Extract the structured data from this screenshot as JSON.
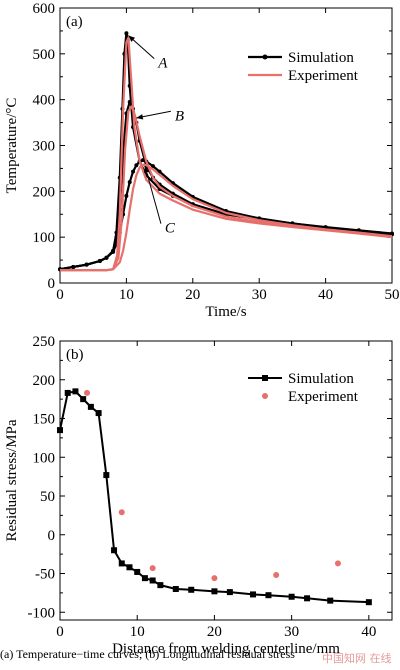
{
  "caption": "(a) Temperature−time curves; (b) Longitudinal residual stress",
  "watermark": "中国知网 在线",
  "colors": {
    "simulation": "#000000",
    "experiment": "#e8706c"
  },
  "chart_data": [
    {
      "type": "line",
      "panel_label": "(a)",
      "xlabel": "Time/s",
      "ylabel": "Temperature/°C",
      "xlim": [
        0,
        50
      ],
      "ylim": [
        0,
        600
      ],
      "xticks": [
        0,
        10,
        20,
        30,
        40,
        50
      ],
      "yticks": [
        0,
        100,
        200,
        300,
        400,
        500,
        600
      ],
      "legend_position": "top-right",
      "annotations": [
        {
          "text": "A",
          "x": 14.8,
          "y": 470,
          "target": [
            10.3,
            540
          ]
        },
        {
          "text": "B",
          "x": 17.3,
          "y": 355,
          "target": [
            11.5,
            360
          ]
        },
        {
          "text": "C",
          "x": 15.8,
          "y": 110,
          "target": [
            12.8,
            255
          ]
        }
      ],
      "series": [
        {
          "name": "Simulation",
          "kind": "line-marker",
          "curves": [
            {
              "x": [
                0,
                2,
                4,
                6,
                7,
                8,
                8.5,
                9,
                9.4,
                9.7,
                10,
                10.2,
                10.5,
                11,
                12,
                13,
                15,
                17,
                20,
                25,
                30,
                35,
                40,
                45,
                50
              ],
              "y": [
                30,
                35,
                40,
                48,
                55,
                70,
                110,
                230,
                380,
                500,
                545,
                530,
                430,
                340,
                265,
                235,
                205,
                190,
                170,
                150,
                140,
                130,
                122,
                115,
                108
              ]
            },
            {
              "x": [
                0,
                2,
                4,
                6,
                7,
                8,
                8.5,
                9,
                9.5,
                10,
                10.5,
                11,
                11.5,
                12,
                13,
                14,
                15,
                17,
                20,
                25,
                30,
                35,
                40,
                45,
                50
              ],
              "y": [
                30,
                35,
                40,
                48,
                55,
                70,
                100,
                160,
                280,
                370,
                395,
                380,
                350,
                310,
                255,
                230,
                215,
                195,
                172,
                150,
                139,
                129,
                121,
                114,
                107
              ]
            },
            {
              "x": [
                0,
                2,
                4,
                6,
                7,
                8,
                8.5,
                9,
                9.5,
                10,
                10.5,
                11,
                11.5,
                12,
                12.5,
                13,
                14,
                15,
                17,
                20,
                25,
                30,
                35,
                40,
                45,
                50
              ],
              "y": [
                30,
                35,
                40,
                48,
                55,
                68,
                85,
                110,
                150,
                190,
                220,
                243,
                257,
                265,
                268,
                265,
                255,
                243,
                218,
                188,
                157,
                141,
                130,
                121,
                114,
                106
              ]
            }
          ]
        },
        {
          "name": "Experiment",
          "kind": "line",
          "curves": [
            {
              "x": [
                0,
                7,
                8,
                8.6,
                9,
                9.5,
                10,
                10.3,
                10.7,
                11.2,
                12,
                13,
                15,
                17,
                20,
                25,
                30,
                35,
                40,
                45,
                50
              ],
              "y": [
                28,
                28,
                30,
                60,
                150,
                380,
                525,
                535,
                450,
                340,
                265,
                225,
                195,
                180,
                160,
                140,
                130,
                122,
                115,
                108,
                100
              ]
            },
            {
              "x": [
                0,
                7,
                8,
                8.8,
                9.3,
                9.8,
                10.3,
                10.8,
                11.3,
                12,
                13,
                14,
                15,
                17,
                20,
                25,
                30,
                35,
                40,
                45,
                50
              ],
              "y": [
                28,
                28,
                30,
                55,
                140,
                290,
                375,
                385,
                365,
                320,
                265,
                230,
                210,
                190,
                168,
                145,
                133,
                124,
                116,
                109,
                101
              ]
            },
            {
              "x": [
                0,
                7,
                8,
                9,
                9.5,
                10,
                10.5,
                11,
                11.5,
                12,
                12.5,
                13,
                14,
                15,
                17,
                20,
                25,
                30,
                35,
                40,
                45,
                50
              ],
              "y": [
                28,
                28,
                30,
                45,
                70,
                110,
                160,
                205,
                235,
                252,
                258,
                257,
                248,
                236,
                212,
                183,
                153,
                137,
                126,
                117,
                110,
                102
              ]
            }
          ]
        }
      ]
    },
    {
      "type": "line",
      "panel_label": "(b)",
      "xlabel": "Distance from welding centerline/mm",
      "ylabel": "Residual stress/MPa",
      "xlim": [
        0,
        43
      ],
      "ylim": [
        -110,
        250
      ],
      "xticks": [
        0,
        10,
        20,
        30,
        40
      ],
      "yticks": [
        -100,
        -50,
        0,
        50,
        100,
        150,
        200,
        250
      ],
      "legend_position": "top-right",
      "series": [
        {
          "name": "Simulation",
          "kind": "line-marker",
          "x": [
            0,
            1,
            2,
            3,
            4,
            5,
            6,
            7,
            8,
            9,
            10,
            11,
            12,
            13,
            15,
            17,
            20,
            22,
            25,
            27,
            30,
            32,
            35,
            40
          ],
          "y": [
            135,
            183,
            185,
            175,
            165,
            157,
            77,
            -20,
            -37,
            -42,
            -48,
            -56,
            -59,
            -65,
            -70,
            -71,
            -73,
            -74,
            -77,
            -78,
            -80,
            -82,
            -85,
            -87
          ]
        },
        {
          "name": "Experiment",
          "kind": "scatter",
          "x": [
            3.5,
            8,
            12,
            20,
            28,
            36
          ],
          "y": [
            183,
            29,
            -43,
            -56,
            -52,
            -37
          ]
        }
      ]
    }
  ]
}
